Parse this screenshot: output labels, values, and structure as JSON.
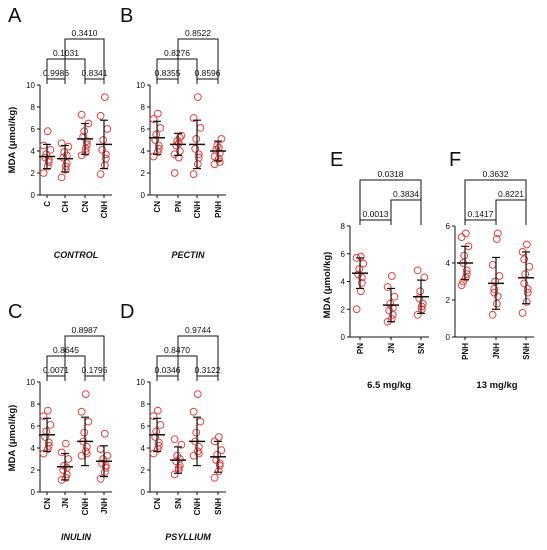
{
  "chart_data": [
    {
      "type": "scatter",
      "letter": "A",
      "panel_title": "CONTROL",
      "ylabel": "MDA (μmol/kg)",
      "ylim": [
        0,
        10
      ],
      "yticks": [
        0,
        2,
        4,
        6,
        8,
        10
      ],
      "categories": [
        "C",
        "CH",
        "CN",
        "CNH"
      ],
      "stats": [
        {
          "mean": 3.5,
          "sd": 1.1
        },
        {
          "mean": 3.3,
          "sd": 1.2
        },
        {
          "mean": 5.1,
          "sd": 1.4
        },
        {
          "mean": 4.6,
          "sd": 2.2
        }
      ],
      "points": [
        [
          2.0,
          2.6,
          3.0,
          3.4,
          3.7,
          4.1,
          4.5,
          5.8,
          3.2
        ],
        [
          1.6,
          2.3,
          2.9,
          3.4,
          3.9,
          4.4,
          4.7,
          2.6,
          3.6
        ],
        [
          3.6,
          4.2,
          4.9,
          5.3,
          5.8,
          6.5,
          7.3,
          3.9,
          4.6
        ],
        [
          1.9,
          2.7,
          3.3,
          4.1,
          5.0,
          6.0,
          7.2,
          8.9,
          3.7
        ]
      ],
      "comparisons": [
        {
          "from": 0,
          "to": 1,
          "p": "0.9986"
        },
        {
          "from": 2,
          "to": 3,
          "p": "0.8341"
        },
        {
          "from": 0,
          "to": 2,
          "p": "0.1031"
        },
        {
          "from": 1,
          "to": 3,
          "p": "0.3410"
        }
      ]
    },
    {
      "type": "scatter",
      "letter": "B",
      "panel_title": "PECTIN",
      "ylabel": "",
      "ylim": [
        0,
        10
      ],
      "yticks": [
        0,
        2,
        4,
        6,
        8,
        10
      ],
      "categories": [
        "CN",
        "PN",
        "CNH",
        "PNH"
      ],
      "stats": [
        {
          "mean": 5.2,
          "sd": 1.5
        },
        {
          "mean": 4.6,
          "sd": 1.0
        },
        {
          "mean": 4.6,
          "sd": 2.2
        },
        {
          "mean": 4.0,
          "sd": 0.9
        }
      ],
      "points": [
        [
          3.5,
          3.9,
          4.5,
          5.0,
          5.5,
          6.1,
          6.9,
          7.4,
          4.2
        ],
        [
          2.0,
          3.4,
          4.0,
          4.5,
          4.9,
          5.4,
          3.7,
          4.7,
          5.2
        ],
        [
          1.9,
          2.8,
          3.4,
          4.2,
          5.1,
          6.1,
          7.0,
          8.9,
          3.7
        ],
        [
          2.8,
          3.3,
          3.8,
          4.1,
          4.5,
          5.1,
          3.5,
          4.3,
          3.0
        ]
      ],
      "comparisons": [
        {
          "from": 0,
          "to": 1,
          "p": "0.8355"
        },
        {
          "from": 2,
          "to": 3,
          "p": "0.8596"
        },
        {
          "from": 0,
          "to": 2,
          "p": "0.8276"
        },
        {
          "from": 1,
          "to": 3,
          "p": "0.8522"
        }
      ]
    },
    {
      "type": "scatter",
      "letter": "C",
      "panel_title": "INULIN",
      "ylabel": "MDA (μmol/kg)",
      "ylim": [
        0,
        10
      ],
      "yticks": [
        0,
        2,
        4,
        6,
        8,
        10
      ],
      "categories": [
        "CN",
        "JN",
        "CNH",
        "JNH"
      ],
      "stats": [
        {
          "mean": 5.2,
          "sd": 1.5
        },
        {
          "mean": 2.3,
          "sd": 1.2
        },
        {
          "mean": 4.6,
          "sd": 2.2
        },
        {
          "mean": 2.8,
          "sd": 1.4
        }
      ],
      "points": [
        [
          3.5,
          3.9,
          4.5,
          5.0,
          5.5,
          6.1,
          6.9,
          7.4,
          4.2
        ],
        [
          1.1,
          1.3,
          1.6,
          2.0,
          2.4,
          3.0,
          3.6,
          4.4,
          2.2
        ],
        [
          3.3,
          3.7,
          4.1,
          4.6,
          5.4,
          6.4,
          7.3,
          8.9,
          3.5
        ],
        [
          1.2,
          1.8,
          2.2,
          2.6,
          3.0,
          3.3,
          3.9,
          5.3,
          2.4
        ]
      ],
      "comparisons": [
        {
          "from": 0,
          "to": 1,
          "p": "0.0071"
        },
        {
          "from": 2,
          "to": 3,
          "p": "0.1795"
        },
        {
          "from": 0,
          "to": 2,
          "p": "0.8645"
        },
        {
          "from": 1,
          "to": 3,
          "p": "0.8987"
        }
      ]
    },
    {
      "type": "scatter",
      "letter": "D",
      "panel_title": "PSYLLIUM",
      "ylabel": "",
      "ylim": [
        0,
        10
      ],
      "yticks": [
        0,
        2,
        4,
        6,
        8,
        10
      ],
      "categories": [
        "CN",
        "SN",
        "CNH",
        "SNH"
      ],
      "stats": [
        {
          "mean": 5.2,
          "sd": 1.5
        },
        {
          "mean": 2.9,
          "sd": 1.2
        },
        {
          "mean": 4.6,
          "sd": 2.2
        },
        {
          "mean": 3.2,
          "sd": 1.4
        }
      ],
      "points": [
        [
          3.5,
          3.9,
          4.5,
          5.0,
          5.5,
          6.1,
          6.9,
          7.4,
          4.2
        ],
        [
          1.6,
          2.0,
          2.4,
          2.8,
          3.3,
          4.3,
          4.8,
          2.2,
          3.0
        ],
        [
          3.3,
          3.7,
          4.1,
          4.6,
          5.4,
          6.4,
          7.3,
          8.9,
          3.5
        ],
        [
          1.3,
          1.9,
          2.4,
          2.9,
          3.4,
          3.8,
          4.6,
          5.0,
          2.6
        ]
      ],
      "comparisons": [
        {
          "from": 0,
          "to": 1,
          "p": "0.0346"
        },
        {
          "from": 2,
          "to": 3,
          "p": "0.3122"
        },
        {
          "from": 0,
          "to": 2,
          "p": "0.8470"
        },
        {
          "from": 1,
          "to": 3,
          "p": "0.9744"
        }
      ]
    },
    {
      "type": "scatter",
      "letter": "E",
      "panel_title": "6.5 mg/kg",
      "ylabel": "MDA (μmol/kg)",
      "ylim": [
        0,
        8
      ],
      "yticks": [
        0,
        2,
        4,
        6,
        8
      ],
      "categories": [
        "PN",
        "JN",
        "SN"
      ],
      "stats": [
        {
          "mean": 4.6,
          "sd": 1.1
        },
        {
          "mean": 2.3,
          "sd": 1.2
        },
        {
          "mean": 2.9,
          "sd": 1.2
        }
      ],
      "points": [
        [
          2.0,
          3.3,
          3.9,
          4.5,
          4.9,
          5.3,
          5.7,
          5.8,
          4.3
        ],
        [
          1.1,
          1.3,
          1.6,
          1.9,
          2.4,
          2.9,
          3.6,
          4.4,
          2.1
        ],
        [
          1.6,
          2.0,
          2.4,
          2.8,
          3.3,
          4.3,
          4.8,
          2.2
        ]
      ],
      "comparisons": [
        {
          "from": 0,
          "to": 1,
          "p": "0.0013"
        },
        {
          "from": 1,
          "to": 2,
          "p": "0.3834"
        },
        {
          "from": 0,
          "to": 2,
          "p": "0.0318"
        }
      ]
    },
    {
      "type": "scatter",
      "letter": "F",
      "panel_title": "13 mg/kg",
      "ylabel": "",
      "ylim": [
        0,
        6
      ],
      "yticks": [
        0,
        2,
        4,
        6
      ],
      "categories": [
        "PNH",
        "JNH",
        "SNH"
      ],
      "stats": [
        {
          "mean": 4.0,
          "sd": 0.9
        },
        {
          "mean": 2.9,
          "sd": 1.4
        },
        {
          "mean": 3.2,
          "sd": 1.4
        }
      ],
      "points": [
        [
          2.8,
          3.2,
          3.6,
          4.0,
          4.4,
          4.9,
          5.4,
          5.6,
          3.4,
          3.0
        ],
        [
          1.2,
          1.8,
          2.2,
          2.6,
          3.0,
          3.3,
          3.9,
          5.3,
          5.6,
          2.4
        ],
        [
          1.3,
          1.9,
          2.4,
          2.9,
          3.4,
          3.8,
          4.6,
          5.0,
          2.6,
          4.2
        ]
      ],
      "comparisons": [
        {
          "from": 0,
          "to": 1,
          "p": "0.1417"
        },
        {
          "from": 1,
          "to": 2,
          "p": "0.8221"
        },
        {
          "from": 0,
          "to": 2,
          "p": "0.3632"
        }
      ]
    }
  ],
  "colors": {
    "marker": "#e8403a",
    "axis": "#111111",
    "summary": "#111111"
  }
}
